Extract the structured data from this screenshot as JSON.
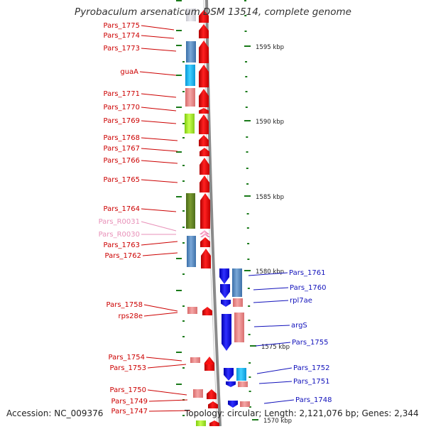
{
  "title": "Pyrobaculum arsenaticum DSM 13514, complete genome",
  "footer": {
    "accession": "Accession: NC_009376",
    "info": "Topology: circular; Length: 2,121,076 bp; Genes: 2,344"
  },
  "colors": {
    "backbone": "#8a8a8a",
    "left_label": "#cc0000",
    "rna_label": "#e890b8",
    "right_label": "#1111bb",
    "tick": "#1a7a1a"
  },
  "scale_ticks": [
    "1595 kbp",
    "1590 kbp",
    "1585 kbp",
    "1580 kbp",
    "1575 kbp",
    "1570 kbp"
  ],
  "left_genes": [
    {
      "label": "Pars_1775",
      "type": "cds"
    },
    {
      "label": "Pars_1774",
      "type": "cds"
    },
    {
      "label": "Pars_1773",
      "type": "cds"
    },
    {
      "label": "guaA",
      "type": "cds"
    },
    {
      "label": "Pars_1771",
      "type": "cds"
    },
    {
      "label": "Pars_1770",
      "type": "cds"
    },
    {
      "label": "Pars_1769",
      "type": "cds"
    },
    {
      "label": "Pars_1768",
      "type": "cds"
    },
    {
      "label": "Pars_1767",
      "type": "cds"
    },
    {
      "label": "Pars_1766",
      "type": "cds"
    },
    {
      "label": "Pars_1765",
      "type": "cds"
    },
    {
      "label": "Pars_1764",
      "type": "cds"
    },
    {
      "label": "Pars_R0031",
      "type": "rna"
    },
    {
      "label": "Pars_R0030",
      "type": "rna"
    },
    {
      "label": "Pars_1763",
      "type": "cds"
    },
    {
      "label": "Pars_1762",
      "type": "cds"
    },
    {
      "label": "Pars_1758",
      "type": "cds"
    },
    {
      "label": "rps28e",
      "type": "cds"
    },
    {
      "label": "Pars_1754",
      "type": "cds"
    },
    {
      "label": "Pars_1753",
      "type": "cds"
    },
    {
      "label": "Pars_1750",
      "type": "cds"
    },
    {
      "label": "Pars_1749",
      "type": "cds"
    },
    {
      "label": "Pars_1747",
      "type": "cds"
    }
  ],
  "right_genes": [
    {
      "label": "Pars_1761"
    },
    {
      "label": "Pars_1760"
    },
    {
      "label": "rpl7ae"
    },
    {
      "label": "argS"
    },
    {
      "label": "Pars_1755"
    },
    {
      "label": "Pars_1752"
    },
    {
      "label": "Pars_1751"
    },
    {
      "label": "Pars_1748"
    }
  ]
}
